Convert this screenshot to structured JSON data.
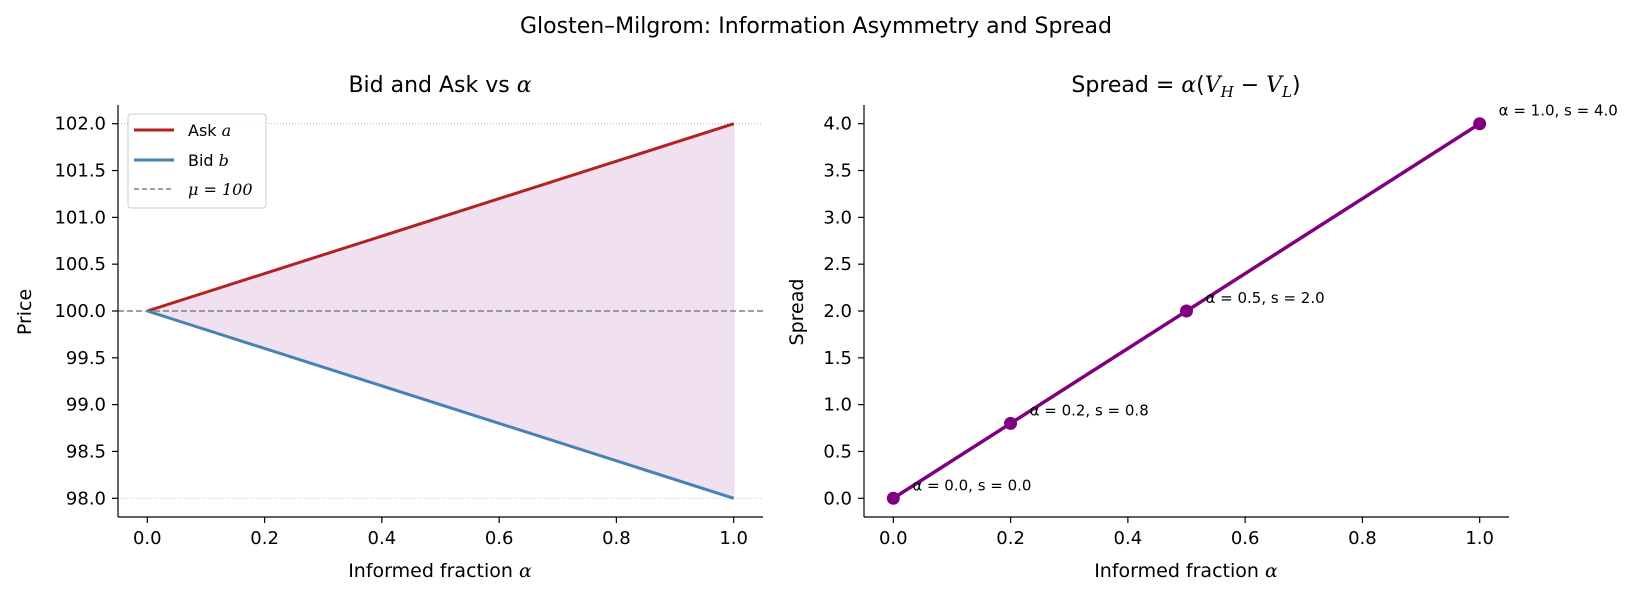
{
  "suptitle": "Glosten–Milgrom: Information Asymmetry and Spread",
  "colors": {
    "ask": "#b22222",
    "bid": "#4682b4",
    "mu": "#808080",
    "fill": "#800080",
    "spread": "#800080"
  },
  "chart_data": [
    {
      "type": "line",
      "title": "Bid and Ask vs α",
      "xlabel": "Informed fraction α",
      "ylabel": "Price",
      "xlim": [
        -0.05,
        1.05
      ],
      "ylim": [
        97.8,
        102.2
      ],
      "xticks": [
        0.0,
        0.2,
        0.4,
        0.6,
        0.8,
        1.0
      ],
      "xtick_labels": [
        "0.0",
        "0.2",
        "0.4",
        "0.6",
        "0.8",
        "1.0"
      ],
      "yticks": [
        98.0,
        98.5,
        99.0,
        99.5,
        100.0,
        100.5,
        101.0,
        101.5,
        102.0
      ],
      "ytick_labels": [
        "98.0",
        "98.5",
        "99.0",
        "99.5",
        "100.0",
        "100.5",
        "101.0",
        "101.5",
        "102.0"
      ],
      "legend_position": "top-left",
      "series": [
        {
          "name": "Ask a",
          "x": [
            0.0,
            1.0
          ],
          "values": [
            100.0,
            102.0
          ]
        },
        {
          "name": "Bid b",
          "x": [
            0.0,
            1.0
          ],
          "values": [
            100.0,
            98.0
          ]
        }
      ],
      "reference_lines": [
        {
          "name": "μ = 100",
          "y": 100.0,
          "style": "dashed"
        },
        {
          "y": 102.0,
          "style": "dotted"
        },
        {
          "y": 98.0,
          "style": "dotted"
        }
      ],
      "shaded_region": {
        "between": [
          "Bid b",
          "Ask a"
        ]
      },
      "legend": [
        {
          "label": "Ask a",
          "text": "Ask ",
          "math": "a"
        },
        {
          "label": "Bid b",
          "text": "Bid ",
          "math": "b"
        },
        {
          "label": "μ = 100",
          "text": "",
          "math": "μ = 100"
        }
      ]
    },
    {
      "type": "line",
      "title": "Spread = α(V_H − V_L)",
      "xlabel": "Informed fraction α",
      "ylabel": "Spread",
      "xlim": [
        -0.05,
        1.05
      ],
      "ylim": [
        -0.2,
        4.2
      ],
      "xticks": [
        0.0,
        0.2,
        0.4,
        0.6,
        0.8,
        1.0
      ],
      "xtick_labels": [
        "0.0",
        "0.2",
        "0.4",
        "0.6",
        "0.8",
        "1.0"
      ],
      "yticks": [
        0.0,
        0.5,
        1.0,
        1.5,
        2.0,
        2.5,
        3.0,
        3.5,
        4.0
      ],
      "ytick_labels": [
        "0.0",
        "0.5",
        "1.0",
        "1.5",
        "2.0",
        "2.5",
        "3.0",
        "3.5",
        "4.0"
      ],
      "series": [
        {
          "x": [
            0.0,
            1.0
          ],
          "values": [
            0.0,
            4.0
          ]
        }
      ],
      "markers": [
        {
          "x": 0.0,
          "y": 0.0,
          "label": "α = 0.0, s = 0.0"
        },
        {
          "x": 0.2,
          "y": 0.8,
          "label": "α = 0.2, s = 0.8"
        },
        {
          "x": 0.5,
          "y": 2.0,
          "label": "α = 0.5, s = 2.0"
        },
        {
          "x": 1.0,
          "y": 4.0,
          "label": "α = 1.0, s = 4.0"
        }
      ]
    }
  ]
}
